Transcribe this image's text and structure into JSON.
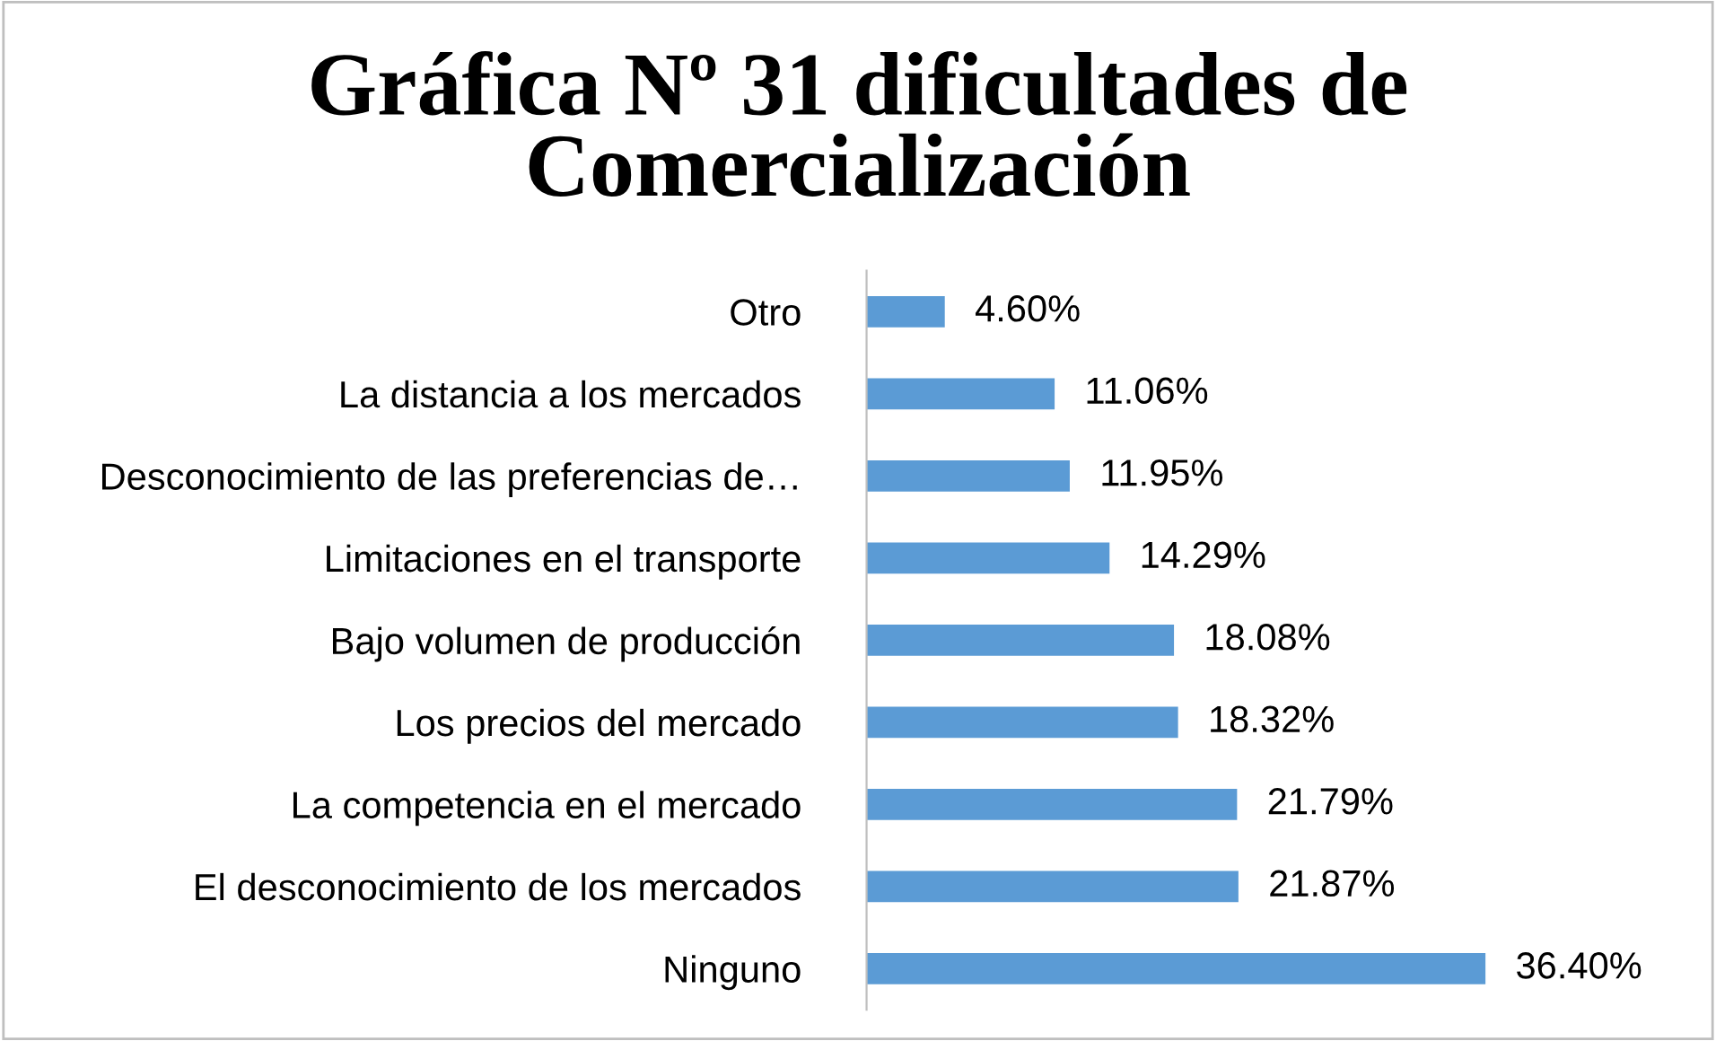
{
  "chart_data": {
    "type": "bar",
    "orientation": "horizontal",
    "title": "Gráfica Nº 31 dificultades de Comercialización",
    "categories": [
      "Otro",
      "La distancia a los mercados",
      "Desconocimiento de las preferencias de…",
      "Limitaciones en el transporte",
      "Bajo volumen de producción",
      "Los precios del mercado",
      "La competencia en el mercado",
      "El desconocimiento de los mercados",
      "Ninguno"
    ],
    "values": [
      4.6,
      11.06,
      11.95,
      14.29,
      18.08,
      18.32,
      21.79,
      21.87,
      36.4
    ],
    "value_labels": [
      "4.60%",
      "11.06%",
      "11.95%",
      "14.29%",
      "18.08%",
      "18.32%",
      "21.79%",
      "21.87%",
      "36.40%"
    ],
    "color": "#5b9bd5",
    "grid": false,
    "legend": false
  }
}
